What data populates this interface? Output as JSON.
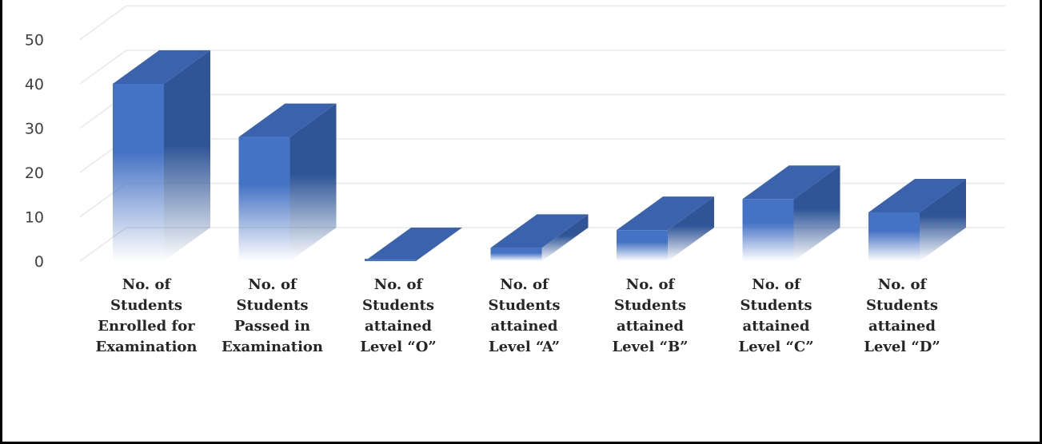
{
  "chart_data": {
    "type": "bar",
    "style": "3d-column",
    "title": "",
    "xlabel": "",
    "ylabel": "",
    "ylim": [
      0,
      50
    ],
    "yticks": [
      0,
      10,
      20,
      30,
      40,
      50
    ],
    "grid": true,
    "legend": "none",
    "colors": {
      "front": "#4472c4",
      "side": "#2f5597",
      "top": "#3a62ad",
      "grid": "#e8e8e8",
      "tick_text": "#404040",
      "label_text": "#262626"
    },
    "categories": [
      [
        "No. of",
        "Students",
        "Enrolled for",
        "Examination"
      ],
      [
        "No. of",
        "Students",
        "Passed in",
        "Examination"
      ],
      [
        "No. of",
        "Students",
        "attained",
        "Level “O”"
      ],
      [
        "No. of",
        "Students",
        "attained",
        "Level “A”"
      ],
      [
        "No. of",
        "Students",
        "attained",
        "Level “B”"
      ],
      [
        "No. of",
        "Students",
        "attained",
        "Level “C”"
      ],
      [
        "No. of",
        "Students",
        "attained",
        "Level “D”"
      ]
    ],
    "values": [
      40,
      28,
      0,
      3,
      7,
      14,
      11
    ]
  }
}
